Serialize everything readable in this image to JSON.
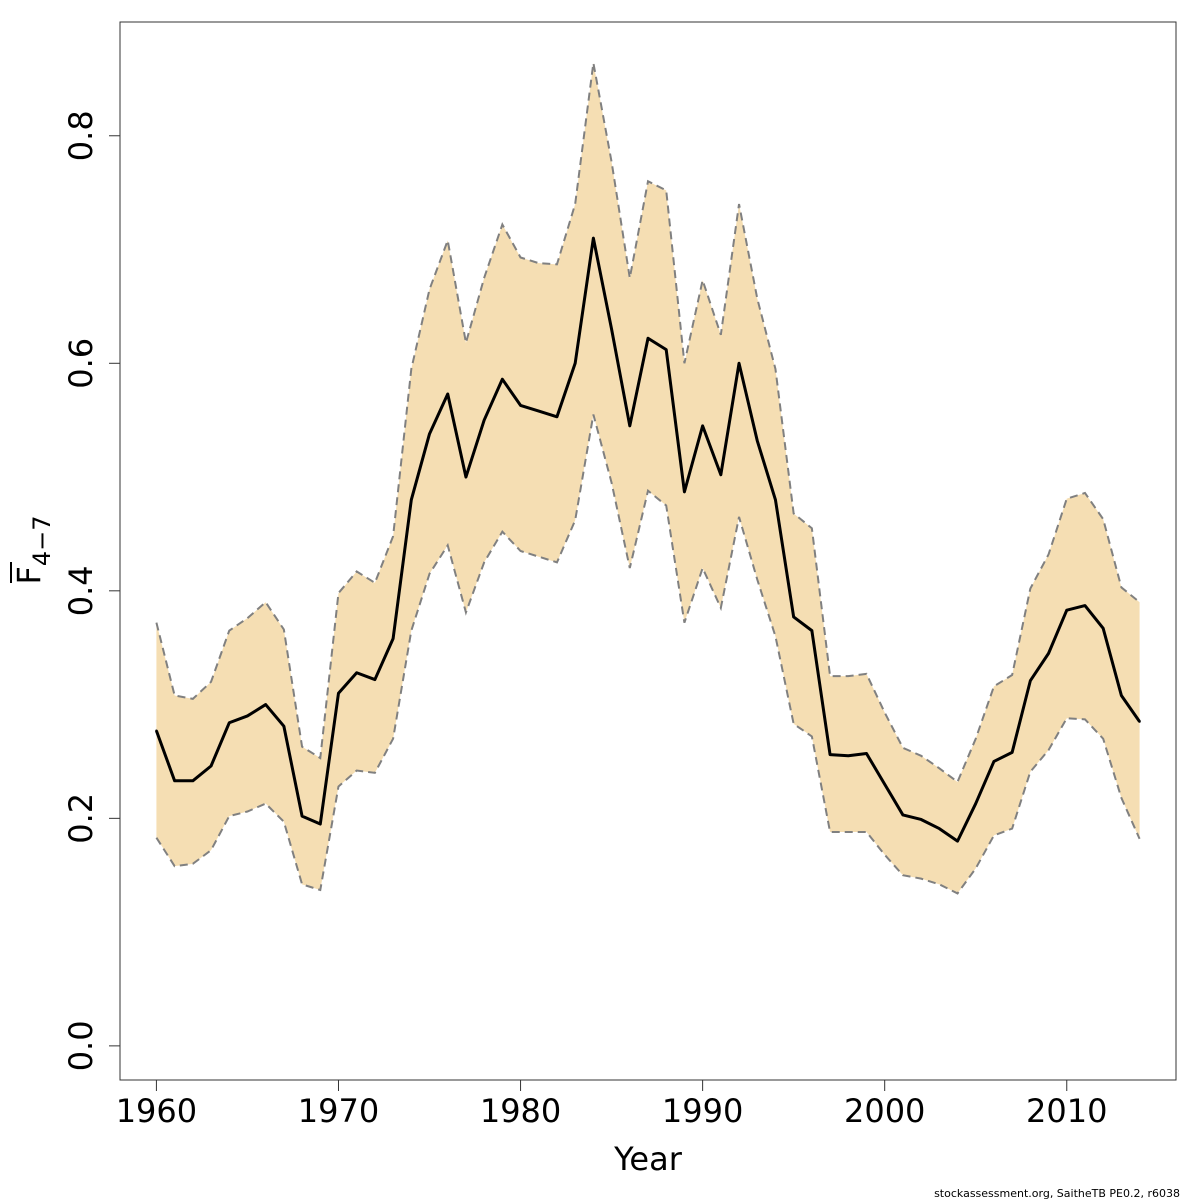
{
  "chart_data": {
    "type": "line",
    "title": "",
    "xlabel": "Year",
    "ylabel_main": "F",
    "ylabel_sub": "4−7",
    "xlim": [
      1958,
      2016
    ],
    "ylim": [
      -0.03,
      0.9
    ],
    "xticks": [
      1960,
      1970,
      1980,
      1990,
      2000,
      2010
    ],
    "xtick_labels": [
      "1960",
      "1970",
      "1980",
      "1990",
      "2000",
      "2010"
    ],
    "yticks": [
      0.0,
      0.2,
      0.4,
      0.6,
      0.8
    ],
    "ytick_labels": [
      "0.0",
      "0.2",
      "0.4",
      "0.6",
      "0.8"
    ],
    "x": [
      1960,
      1961,
      1962,
      1963,
      1964,
      1965,
      1966,
      1967,
      1968,
      1969,
      1970,
      1971,
      1972,
      1973,
      1974,
      1975,
      1976,
      1977,
      1978,
      1979,
      1980,
      1981,
      1982,
      1983,
      1984,
      1985,
      1986,
      1987,
      1988,
      1989,
      1990,
      1991,
      1992,
      1993,
      1994,
      1995,
      1996,
      1997,
      1998,
      1999,
      2000,
      2001,
      2002,
      2003,
      2004,
      2005,
      2006,
      2007,
      2008,
      2009,
      2010,
      2011,
      2012,
      2013,
      2014
    ],
    "series": [
      {
        "name": "estimate",
        "values": [
          0.277,
          0.233,
          0.233,
          0.246,
          0.284,
          0.29,
          0.3,
          0.281,
          0.202,
          0.195,
          0.31,
          0.328,
          0.322,
          0.358,
          0.48,
          0.538,
          0.573,
          0.5,
          0.55,
          0.586,
          0.563,
          0.558,
          0.553,
          0.6,
          0.71,
          0.63,
          0.545,
          0.622,
          0.612,
          0.487,
          0.545,
          0.502,
          0.6,
          0.532,
          0.48,
          0.377,
          0.365,
          0.256,
          0.255,
          0.257,
          0.23,
          0.203,
          0.199,
          0.191,
          0.18,
          0.213,
          0.25,
          0.258,
          0.321,
          0.345,
          0.383,
          0.387,
          0.367,
          0.308,
          0.285
        ]
      },
      {
        "name": "upper",
        "values": [
          0.372,
          0.308,
          0.305,
          0.32,
          0.365,
          0.376,
          0.39,
          0.366,
          0.263,
          0.253,
          0.398,
          0.417,
          0.407,
          0.448,
          0.595,
          0.665,
          0.708,
          0.618,
          0.675,
          0.722,
          0.693,
          0.688,
          0.687,
          0.74,
          0.864,
          0.777,
          0.675,
          0.76,
          0.752,
          0.6,
          0.673,
          0.625,
          0.74,
          0.657,
          0.595,
          0.468,
          0.455,
          0.325,
          0.325,
          0.327,
          0.293,
          0.262,
          0.255,
          0.244,
          0.232,
          0.27,
          0.316,
          0.326,
          0.402,
          0.432,
          0.481,
          0.486,
          0.463,
          0.403,
          0.39
        ]
      },
      {
        "name": "lower",
        "values": [
          0.183,
          0.158,
          0.16,
          0.172,
          0.202,
          0.206,
          0.213,
          0.197,
          0.142,
          0.137,
          0.228,
          0.242,
          0.24,
          0.27,
          0.365,
          0.415,
          0.44,
          0.381,
          0.425,
          0.452,
          0.435,
          0.43,
          0.425,
          0.462,
          0.555,
          0.495,
          0.42,
          0.488,
          0.475,
          0.372,
          0.42,
          0.385,
          0.465,
          0.41,
          0.36,
          0.283,
          0.272,
          0.188,
          0.188,
          0.188,
          0.168,
          0.15,
          0.147,
          0.142,
          0.134,
          0.156,
          0.185,
          0.191,
          0.241,
          0.26,
          0.288,
          0.287,
          0.27,
          0.218,
          0.182
        ]
      }
    ],
    "band_color": "#f5deb3",
    "line_color": "#000000",
    "bound_color": "#808080",
    "axis_color": "#333333"
  },
  "footer": {
    "credit": "stockassessment.org, SaitheTB  PE0.2, r6038"
  }
}
